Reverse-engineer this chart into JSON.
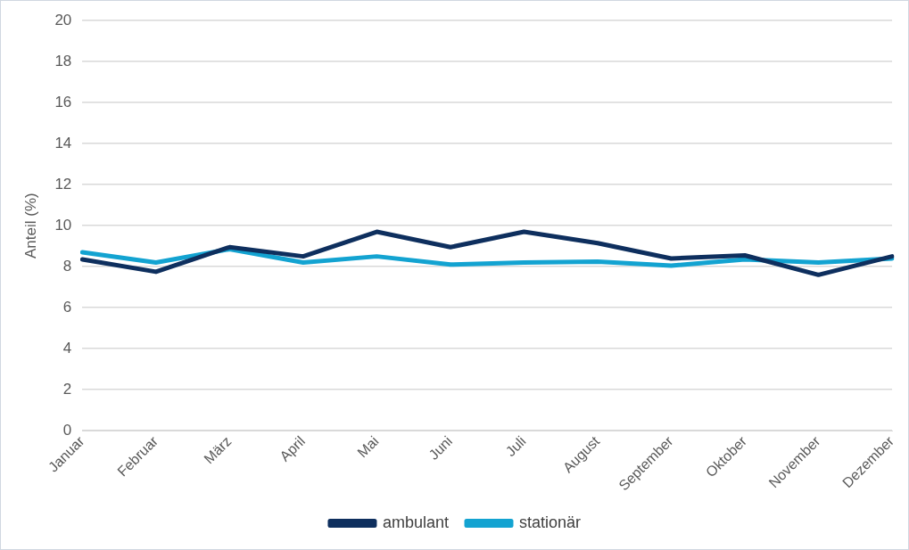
{
  "chart_data": {
    "type": "line",
    "ylabel": "Anteil (%)",
    "categories": [
      "Januar",
      "Februar",
      "März",
      "April",
      "Mai",
      "Juni",
      "Juli",
      "August",
      "September",
      "Oktober",
      "November",
      "Dezember"
    ],
    "series": [
      {
        "name": "ambulant",
        "color": "#0e2f5e",
        "values": [
          8.35,
          7.75,
          8.95,
          8.5,
          9.7,
          8.95,
          9.7,
          9.15,
          8.4,
          8.55,
          7.6,
          8.5
        ]
      },
      {
        "name": "stationär",
        "color": "#13a3d1",
        "values": [
          8.7,
          8.2,
          8.85,
          8.2,
          8.5,
          8.1,
          8.2,
          8.25,
          8.05,
          8.35,
          8.2,
          8.4
        ]
      }
    ],
    "ylim": [
      0,
      20
    ],
    "yticks": [
      0,
      2,
      4,
      6,
      8,
      10,
      12,
      14,
      16,
      18,
      20
    ],
    "grid": "y",
    "legend": "bottom",
    "marker": "none",
    "line_style": "solid"
  }
}
